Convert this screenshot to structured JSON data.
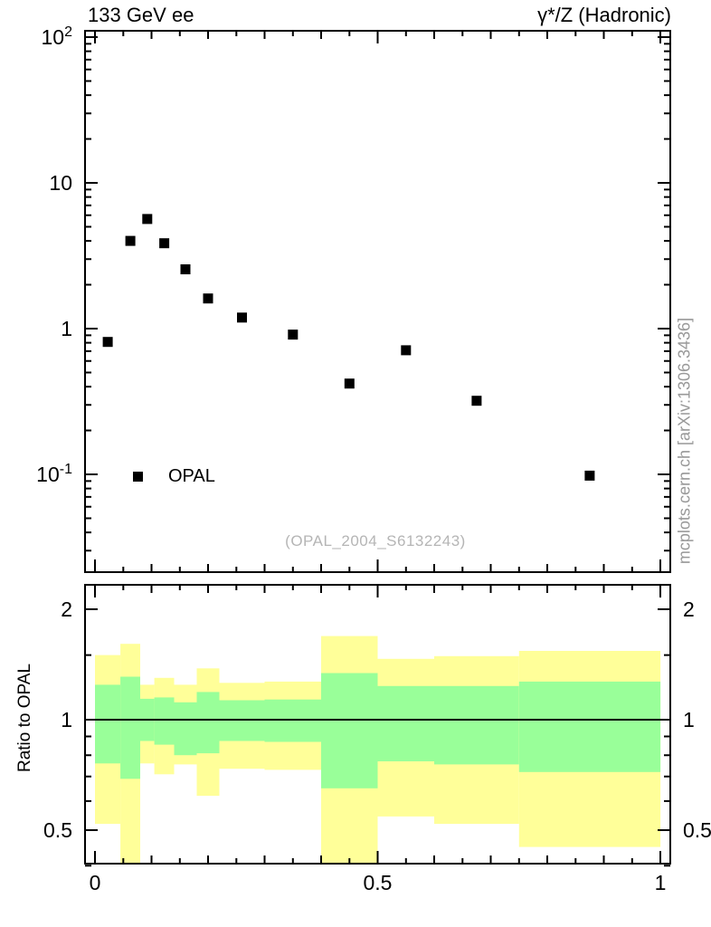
{
  "meta": {
    "side_note": "mcplots.cern.ch [arXiv:1306.3436]"
  },
  "colors": {
    "band_outer": "#ffff99",
    "band_inner": "#99ff99",
    "marker": "#000000",
    "frame": "#000000",
    "watermark_text": "#b5b5b5",
    "side_note_text": "#999999"
  },
  "chart_data": [
    {
      "type": "scatter",
      "title": "133 GeV ee",
      "right_title": "γ*/Z (Hadronic)",
      "legend_label": "OPAL",
      "watermark": "(OPAL_2004_S6132243)",
      "x_axis": {
        "lim": [
          -0.019,
          1.019
        ],
        "major_ticks": [
          0,
          0.5,
          1
        ],
        "medium_step": 0.1,
        "minor_step": 0.05,
        "labels_shown": false
      },
      "y_axis": {
        "scale": "log",
        "lim": [
          0.021,
          112
        ],
        "ticks": [
          {
            "v": 100,
            "label": "10^2"
          },
          {
            "v": 10,
            "label": "10"
          },
          {
            "v": 1,
            "label": "1"
          },
          {
            "v": 0.1,
            "label": "10^-1"
          }
        ]
      },
      "series": [
        {
          "name": "OPAL",
          "marker": "filled-square",
          "points": [
            {
              "x": 0.0225,
              "y": 0.81
            },
            {
              "x": 0.0625,
              "y": 4.0
            },
            {
              "x": 0.0925,
              "y": 5.65
            },
            {
              "x": 0.1225,
              "y": 3.85
            },
            {
              "x": 0.16,
              "y": 2.55
            },
            {
              "x": 0.2,
              "y": 1.61
            },
            {
              "x": 0.26,
              "y": 1.19
            },
            {
              "x": 0.35,
              "y": 0.91
            },
            {
              "x": 0.45,
              "y": 0.42
            },
            {
              "x": 0.55,
              "y": 0.71
            },
            {
              "x": 0.675,
              "y": 0.32
            },
            {
              "x": 0.875,
              "y": 0.098
            }
          ]
        }
      ]
    },
    {
      "type": "ratio-bands",
      "ylabel": "Ratio to OPAL",
      "reference_line": 1,
      "x_axis": {
        "lim": [
          -0.019,
          1.019
        ],
        "ticks": [
          {
            "v": 0,
            "label": "0"
          },
          {
            "v": 0.5,
            "label": "0.5"
          },
          {
            "v": 1,
            "label": "1"
          }
        ],
        "medium_step": 0.1,
        "minor_step": 0.05
      },
      "y_axis": {
        "scale": "log",
        "lim": [
          0.403,
          2.345
        ],
        "ticks": [
          {
            "v": 2,
            "label": "2"
          },
          {
            "v": 1,
            "label": "1"
          },
          {
            "v": 0.5,
            "label": "0.5"
          }
        ],
        "minor_ticks": [
          0.4,
          0.6,
          0.7,
          0.8,
          0.9,
          1.5
        ]
      },
      "bins": [
        {
          "xlo": 0.0,
          "xhi": 0.045,
          "outer": [
            0.52,
            1.5
          ],
          "inner": [
            0.76,
            1.245
          ]
        },
        {
          "xlo": 0.045,
          "xhi": 0.08,
          "outer": [
            0.35,
            1.61
          ],
          "inner": [
            0.69,
            1.31
          ]
        },
        {
          "xlo": 0.08,
          "xhi": 0.105,
          "outer": [
            0.76,
            1.245
          ],
          "inner": [
            0.875,
            1.14
          ]
        },
        {
          "xlo": 0.105,
          "xhi": 0.14,
          "outer": [
            0.71,
            1.3
          ],
          "inner": [
            0.855,
            1.15
          ]
        },
        {
          "xlo": 0.14,
          "xhi": 0.18,
          "outer": [
            0.755,
            1.245
          ],
          "inner": [
            0.8,
            1.115
          ]
        },
        {
          "xlo": 0.18,
          "xhi": 0.22,
          "outer": [
            0.62,
            1.38
          ],
          "inner": [
            0.81,
            1.19
          ]
        },
        {
          "xlo": 0.22,
          "xhi": 0.3,
          "outer": [
            0.735,
            1.26
          ],
          "inner": [
            0.875,
            1.13
          ]
        },
        {
          "xlo": 0.3,
          "xhi": 0.4,
          "outer": [
            0.73,
            1.27
          ],
          "inner": [
            0.87,
            1.135
          ]
        },
        {
          "xlo": 0.4,
          "xhi": 0.5,
          "outer": [
            0.35,
            1.69
          ],
          "inner": [
            0.65,
            1.34
          ]
        },
        {
          "xlo": 0.5,
          "xhi": 0.6,
          "outer": [
            0.545,
            1.465
          ],
          "inner": [
            0.77,
            1.235
          ]
        },
        {
          "xlo": 0.6,
          "xhi": 0.75,
          "outer": [
            0.52,
            1.49
          ],
          "inner": [
            0.755,
            1.235
          ]
        },
        {
          "xlo": 0.75,
          "xhi": 1.0,
          "outer": [
            0.45,
            1.54
          ],
          "inner": [
            0.72,
            1.27
          ]
        }
      ]
    }
  ]
}
